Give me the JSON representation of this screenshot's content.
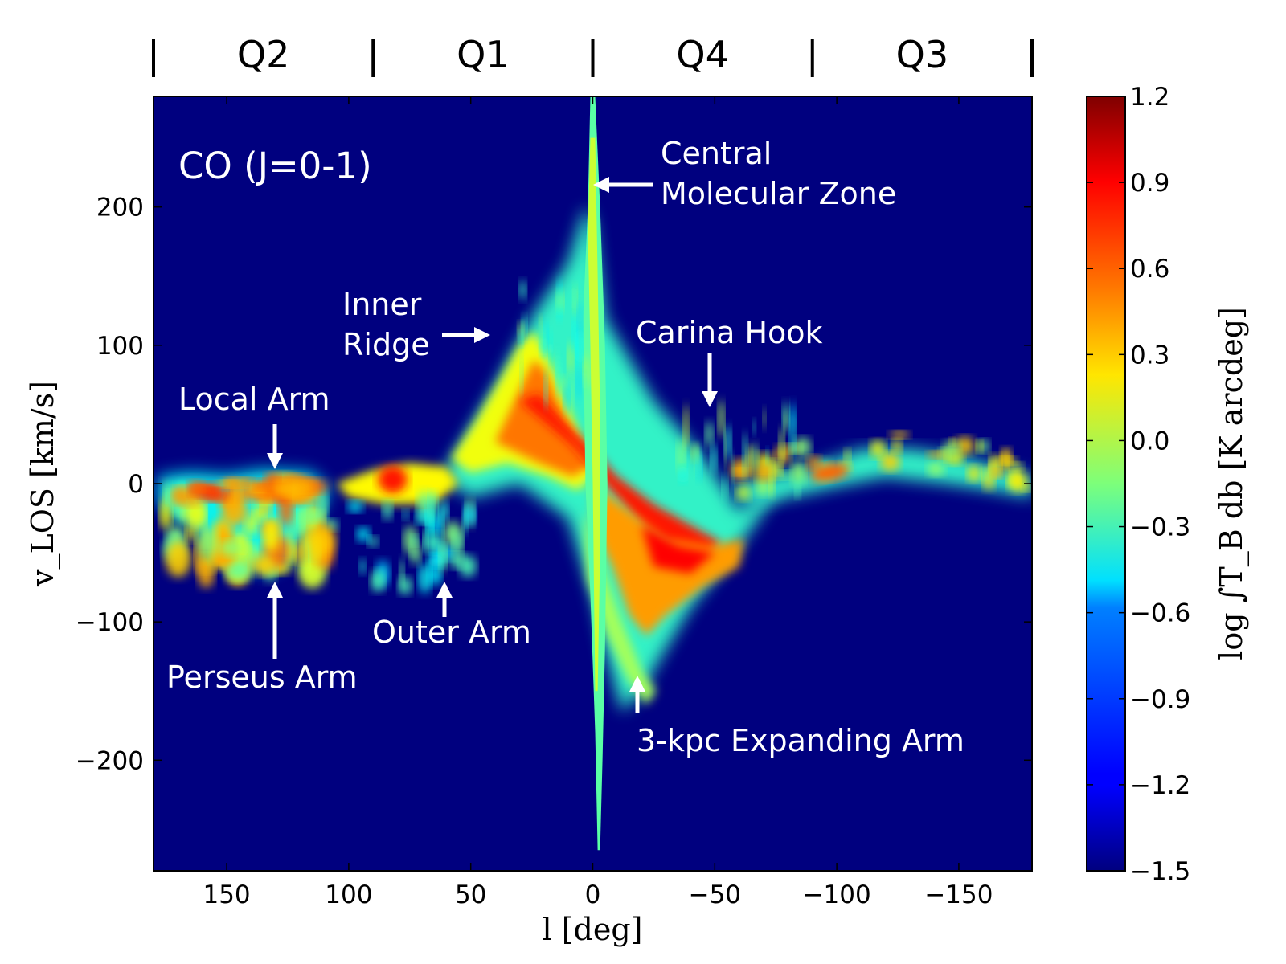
{
  "chart_data": {
    "type": "heatmap",
    "title": "CO (J=0-1)",
    "xlabel": "l [deg]",
    "ylabel": "v_LOS [km/s]",
    "colorbar_label": "log ∫T_B db [K arcdeg]",
    "xlim": [
      180,
      -180
    ],
    "ylim": [
      -280,
      280
    ],
    "colormap": "jet",
    "clim": [
      -1.5,
      1.2
    ],
    "x_ticks": [
      150,
      100,
      50,
      0,
      -50,
      -100,
      -150
    ],
    "x_tick_labels": [
      "150",
      "100",
      "50",
      "0",
      "−50",
      "−100",
      "−150"
    ],
    "y_ticks": [
      200,
      100,
      0,
      -100,
      -200
    ],
    "y_tick_labels": [
      "200",
      "100",
      "0",
      "−100",
      "−200"
    ],
    "colorbar_ticks": [
      1.2,
      0.9,
      0.6,
      0.3,
      0.0,
      -0.3,
      -0.6,
      -0.9,
      -1.2,
      -1.5
    ],
    "colorbar_tick_labels": [
      "1.2",
      "0.9",
      "0.6",
      "0.3",
      "0.0",
      "−0.3",
      "−0.6",
      "−0.9",
      "−1.2",
      "−1.5"
    ],
    "quadrants": [
      {
        "label": "Q2",
        "l_from": 180,
        "l_to": 90
      },
      {
        "label": "Q1",
        "l_from": 90,
        "l_to": 0
      },
      {
        "label": "Q4",
        "l_from": 0,
        "l_to": -90
      },
      {
        "label": "Q3",
        "l_from": -90,
        "l_to": -180
      }
    ],
    "quadrant_dividers": [
      180,
      90,
      0,
      -90,
      -180
    ],
    "annotations": [
      {
        "id": "central-molecular-zone",
        "lines": [
          "Central",
          "Molecular Zone"
        ],
        "arrow_to": {
          "l": -3,
          "v": 215
        },
        "arrow_dir": "left"
      },
      {
        "id": "inner-ridge",
        "lines": [
          "Inner",
          "Ridge"
        ],
        "arrow_to": {
          "l": 40,
          "v": 105
        },
        "arrow_dir": "right"
      },
      {
        "id": "carina-hook",
        "lines": [
          "Carina Hook"
        ],
        "arrow_to": {
          "l": -50,
          "v": 55
        },
        "arrow_dir": "down"
      },
      {
        "id": "local-arm",
        "lines": [
          "Local Arm"
        ],
        "arrow_to": {
          "l": 130,
          "v": 10
        },
        "arrow_dir": "down"
      },
      {
        "id": "perseus-arm",
        "lines": [
          "Perseus Arm"
        ],
        "arrow_to": {
          "l": 130,
          "v": -75
        },
        "arrow_dir": "up"
      },
      {
        "id": "outer-arm",
        "lines": [
          "Outer Arm"
        ],
        "arrow_to": {
          "l": 60,
          "v": -75
        },
        "arrow_dir": "up"
      },
      {
        "id": "3kpc-expanding-arm",
        "lines": [
          "3-kpc Expanding Arm"
        ],
        "arrow_to": {
          "l": -20,
          "v": -145
        },
        "arrow_dir": "up"
      }
    ],
    "emission_features": [
      {
        "name": "central-molecular-zone",
        "l_range": [
          3,
          -3
        ],
        "v_range": [
          -265,
          280
        ],
        "level": 0.1
      },
      {
        "name": "local-perseus-complex",
        "l_range": [
          180,
          110
        ],
        "v_range": [
          -80,
          10
        ],
        "level": 0.35
      },
      {
        "name": "inner-ridge-q1",
        "l_range": [
          60,
          0
        ],
        "v_range": [
          0,
          110
        ],
        "level": 0.7
      },
      {
        "name": "inner-ridge-q4",
        "l_range": [
          0,
          -55
        ],
        "v_range": [
          -120,
          0
        ],
        "level": 0.75
      },
      {
        "name": "q4-outer-streak",
        "l_range": [
          -55,
          -180
        ],
        "v_range": [
          -25,
          50
        ],
        "level": 0.3
      },
      {
        "name": "3kpc-arm",
        "l_range": [
          5,
          -30
        ],
        "v_range": [
          -160,
          -40
        ],
        "level": 0.2
      }
    ]
  }
}
